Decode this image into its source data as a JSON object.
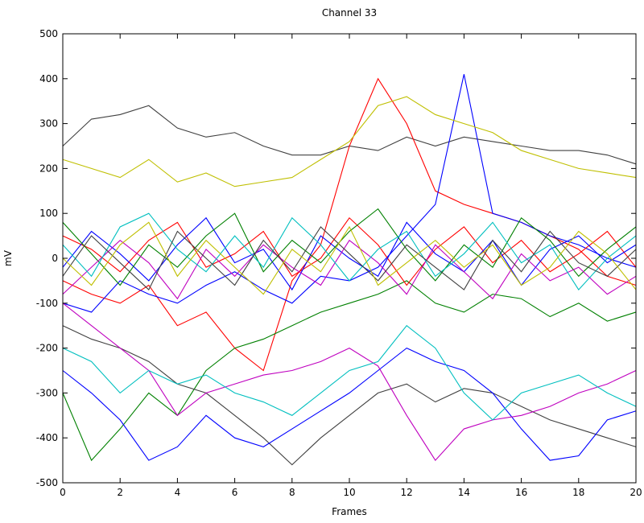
{
  "chart_data": {
    "type": "line",
    "title": "Channel 33",
    "xlabel": "Frames",
    "ylabel": "mV",
    "x": [
      0,
      1,
      2,
      3,
      4,
      5,
      6,
      7,
      8,
      9,
      10,
      11,
      12,
      13,
      14,
      15,
      16,
      17,
      18,
      19,
      20
    ],
    "xlim": [
      0,
      20
    ],
    "xticks": [
      0,
      2,
      4,
      6,
      8,
      10,
      12,
      14,
      16,
      18,
      20
    ],
    "ylim": [
      -500,
      500
    ],
    "yticks": [
      -500,
      -400,
      -300,
      -200,
      -100,
      0,
      100,
      200,
      300,
      400,
      500
    ],
    "grid": false,
    "series": [
      {
        "color": "#404040",
        "values": [
          250,
          310,
          320,
          340,
          290,
          270,
          280,
          250,
          230,
          230,
          250,
          240,
          270,
          250,
          270,
          260,
          250,
          240,
          240,
          230,
          210
        ]
      },
      {
        "color": "#ff0000",
        "values": [
          -50,
          -80,
          -100,
          -60,
          -150,
          -120,
          -200,
          -250,
          -50,
          30,
          250,
          400,
          300,
          150,
          120,
          100,
          80,
          50,
          20,
          -40,
          -60
        ]
      },
      {
        "color": "#0000ff",
        "values": [
          -100,
          -120,
          -50,
          -80,
          -100,
          -60,
          -30,
          -70,
          -100,
          -40,
          -50,
          -20,
          50,
          120,
          410,
          100,
          80,
          50,
          30,
          0,
          -20
        ]
      },
      {
        "color": "#bfbf00",
        "values": [
          220,
          200,
          180,
          220,
          170,
          190,
          160,
          170,
          180,
          220,
          260,
          340,
          360,
          320,
          300,
          280,
          240,
          220,
          200,
          190,
          180
        ]
      },
      {
        "color": "#008000",
        "values": [
          -300,
          -450,
          -380,
          -300,
          -350,
          -250,
          -200,
          -180,
          -150,
          -120,
          -100,
          -80,
          -50,
          -100,
          -120,
          -80,
          -90,
          -130,
          -100,
          -140,
          -120
        ]
      },
      {
        "color": "#404040",
        "values": [
          -150,
          -180,
          -200,
          -230,
          -280,
          -300,
          -350,
          -400,
          -460,
          -400,
          -350,
          -300,
          -280,
          -320,
          -290,
          -300,
          -330,
          -360,
          -380,
          -400,
          -420
        ]
      },
      {
        "color": "#0000ff",
        "values": [
          -250,
          -300,
          -360,
          -450,
          -420,
          -350,
          -400,
          -420,
          -380,
          -340,
          -300,
          -250,
          -200,
          -230,
          -250,
          -300,
          -380,
          -450,
          -440,
          -360,
          -340
        ]
      },
      {
        "color": "#bf00bf",
        "values": [
          -100,
          -150,
          -200,
          -250,
          -350,
          -300,
          -280,
          -260,
          -250,
          -230,
          -200,
          -240,
          -350,
          -450,
          -380,
          -360,
          -350,
          -330,
          -300,
          -280,
          -250
        ]
      },
      {
        "color": "#00bfbf",
        "values": [
          -200,
          -230,
          -300,
          -250,
          -280,
          -260,
          -300,
          -320,
          -350,
          -300,
          -250,
          -230,
          -150,
          -200,
          -300,
          -360,
          -300,
          -280,
          -260,
          -300,
          -330
        ]
      },
      {
        "color": "#ff0000",
        "values": [
          50,
          20,
          -30,
          40,
          80,
          -20,
          10,
          60,
          -40,
          0,
          90,
          30,
          -60,
          20,
          70,
          -10,
          40,
          -30,
          10,
          60,
          -20
        ]
      },
      {
        "color": "#0000ff",
        "values": [
          -20,
          60,
          10,
          -50,
          30,
          90,
          -10,
          20,
          -70,
          50,
          0,
          -40,
          80,
          10,
          -30,
          40,
          -60,
          20,
          50,
          -10,
          30
        ]
      },
      {
        "color": "#008000",
        "values": [
          80,
          10,
          -60,
          30,
          -20,
          50,
          100,
          -30,
          40,
          -10,
          60,
          110,
          20,
          -50,
          30,
          -20,
          90,
          40,
          -40,
          20,
          70
        ]
      },
      {
        "color": "#bf00bf",
        "values": [
          -80,
          -20,
          40,
          -10,
          -90,
          20,
          -40,
          30,
          -20,
          -60,
          40,
          -10,
          -80,
          30,
          -30,
          -90,
          10,
          -50,
          -20,
          -80,
          -40
        ]
      },
      {
        "color": "#00bfbf",
        "values": [
          30,
          -40,
          70,
          100,
          20,
          -30,
          50,
          -20,
          90,
          30,
          -50,
          20,
          60,
          -40,
          10,
          80,
          -10,
          30,
          -70,
          0,
          50
        ]
      },
      {
        "color": "#404040",
        "values": [
          -40,
          50,
          -10,
          -70,
          60,
          0,
          -60,
          40,
          -30,
          70,
          10,
          -50,
          30,
          -20,
          -70,
          40,
          -30,
          60,
          -10,
          -40,
          20
        ]
      },
      {
        "color": "#bfbf00",
        "values": [
          0,
          -60,
          30,
          80,
          -40,
          40,
          -20,
          -80,
          20,
          -30,
          70,
          -60,
          -10,
          40,
          -20,
          30,
          -60,
          -20,
          60,
          10,
          -70
        ]
      }
    ]
  }
}
